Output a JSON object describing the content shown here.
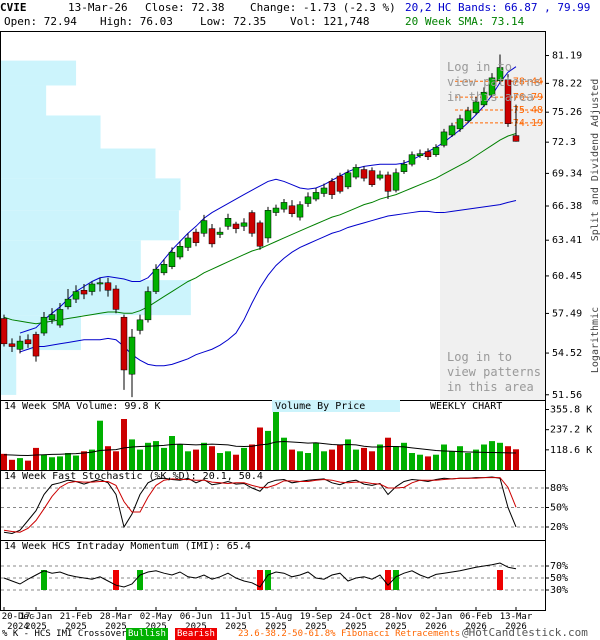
{
  "header": {
    "symbol": "CVIE",
    "date": "13-Mar-26",
    "close": "Close: 72.38",
    "change": "Change: -1.73 (-2.3 %)",
    "bands": "20,2 HC Bands: 66.87 , 79.99",
    "open": "Open: 72.94",
    "high": "High: 76.03",
    "low": "Low: 72.35",
    "volume": "Vol: 121,748",
    "sma": "20 Week SMA: 73.14"
  },
  "chart_data": [
    {
      "type": "candlestick",
      "log_scale": true,
      "up_color": "#00b000",
      "down_color": "#cc0000",
      "categories": [
        "20-Dec\n2024",
        null,
        null,
        null,
        "17-Jan\n2025",
        null,
        null,
        null,
        null,
        "21-Feb\n2025",
        null,
        null,
        null,
        null,
        "28-Mar\n2025",
        null,
        null,
        null,
        null,
        "02-May\n2025",
        null,
        null,
        null,
        null,
        "06-Jun\n2025",
        null,
        null,
        null,
        null,
        "11-Jul\n2025",
        null,
        null,
        null,
        null,
        "15-Aug\n2025",
        null,
        null,
        null,
        null,
        "19-Sep\n2025",
        null,
        null,
        null,
        null,
        "24-Oct\n2025",
        null,
        null,
        null,
        null,
        "28-Nov\n2025",
        null,
        null,
        null,
        null,
        "02-Jan\n2026",
        null,
        null,
        null,
        null,
        "06-Feb\n2026",
        null,
        null,
        null,
        null,
        "13-Mar\n2026"
      ],
      "open": [
        57.1,
        55.2,
        54.8,
        55.5,
        55.9,
        56.0,
        57.0,
        56.6,
        58.0,
        58.6,
        59.3,
        59.2,
        59.8,
        59.9,
        59.4,
        57.2,
        53.0,
        56.2,
        57.0,
        59.2,
        60.7,
        61.2,
        62.0,
        62.8,
        64.1,
        64.0,
        64.4,
        63.9,
        64.6,
        64.8,
        64.6,
        65.8,
        64.9,
        63.6,
        65.8,
        66.1,
        66.4,
        65.4,
        66.6,
        67.0,
        67.5,
        68.6,
        69.1,
        68.1,
        69.0,
        69.7,
        69.6,
        68.9,
        69.2,
        67.8,
        69.5,
        70.2,
        71.0,
        71.4,
        71.1,
        72.0,
        73.0,
        73.6,
        74.4,
        75.2,
        76.0,
        77.0,
        78.5,
        78.6,
        72.94
      ],
      "high": [
        57.4,
        55.6,
        55.8,
        55.9,
        56.1,
        57.6,
        57.9,
        58.3,
        59.4,
        59.7,
        59.8,
        60.0,
        60.3,
        60.3,
        59.7,
        57.4,
        56.3,
        57.4,
        59.6,
        61.4,
        61.8,
        62.8,
        63.3,
        64.0,
        64.4,
        65.6,
        64.8,
        64.5,
        65.7,
        65.0,
        65.3,
        66.0,
        65.1,
        66.3,
        66.5,
        67.0,
        66.9,
        66.8,
        67.6,
        68.0,
        68.4,
        68.9,
        69.4,
        69.7,
        70.2,
        70.0,
        69.9,
        69.6,
        69.5,
        69.8,
        70.6,
        71.4,
        71.6,
        71.7,
        72.1,
        73.6,
        74.2,
        75.0,
        75.8,
        76.8,
        77.8,
        79.3,
        81.3,
        79.2,
        76.03
      ],
      "low": [
        55.0,
        54.6,
        54.5,
        54.9,
        53.9,
        55.8,
        56.7,
        56.4,
        57.8,
        58.3,
        58.6,
        58.9,
        59.2,
        58.8,
        57.5,
        51.9,
        51.4,
        55.9,
        56.8,
        59.0,
        60.5,
        61.0,
        61.8,
        62.5,
        62.9,
        63.7,
        62.8,
        63.6,
        64.3,
        64.0,
        64.2,
        63.7,
        62.6,
        63.2,
        65.5,
        65.8,
        65.4,
        65.1,
        66.3,
        66.8,
        67.2,
        67.0,
        67.5,
        67.9,
        68.8,
        68.6,
        68.1,
        68.7,
        67.0,
        67.6,
        69.3,
        70.0,
        70.8,
        70.6,
        70.9,
        71.8,
        72.8,
        73.3,
        74.2,
        75.0,
        75.8,
        76.8,
        78.2,
        73.8,
        72.35
      ],
      "close": [
        55.2,
        55.0,
        55.4,
        55.2,
        54.3,
        57.2,
        57.4,
        57.8,
        58.6,
        59.2,
        59.0,
        59.8,
        59.9,
        59.3,
        57.8,
        53.3,
        55.7,
        57.0,
        59.2,
        61.0,
        61.4,
        62.4,
        62.9,
        63.6,
        63.2,
        65.1,
        63.1,
        64.1,
        65.3,
        64.4,
        64.9,
        64.0,
        62.9,
        66.0,
        66.2,
        66.7,
        65.7,
        66.5,
        67.2,
        67.6,
        68.0,
        67.4,
        67.7,
        69.4,
        69.9,
        68.9,
        68.3,
        69.2,
        67.7,
        69.4,
        70.2,
        71.1,
        71.2,
        70.9,
        71.8,
        73.3,
        73.9,
        74.6,
        75.4,
        76.3,
        77.3,
        78.8,
        79.9,
        74.11,
        72.38
      ],
      "series": [
        {
          "color": "#0000cc",
          "values": [
            null,
            null,
            56.0,
            56.2,
            56.4,
            57.0,
            57.5,
            58.0,
            58.6,
            59.2,
            59.6,
            60.0,
            60.3,
            60.4,
            60.3,
            60.2,
            60.0,
            60.0,
            60.3,
            61.0,
            61.8,
            62.6,
            63.3,
            64.0,
            64.6,
            65.3,
            65.8,
            66.2,
            66.6,
            67.0,
            67.4,
            67.8,
            68.2,
            68.6,
            68.8,
            68.6,
            68.3,
            68.0,
            67.9,
            68.0,
            68.3,
            68.7,
            69.1,
            69.5,
            69.8,
            70.0,
            70.1,
            70.2,
            70.2,
            70.2,
            70.3,
            70.6,
            71.0,
            71.4,
            71.8,
            72.3,
            72.9,
            73.5,
            74.2,
            75.0,
            75.9,
            77.0,
            78.3,
            79.4,
            79.99
          ]
        },
        {
          "color": "#0000cc",
          "values": [
            null,
            null,
            54.6,
            54.8,
            55.0,
            55.0,
            55.1,
            55.2,
            55.3,
            55.4,
            55.5,
            55.5,
            55.5,
            55.6,
            55.5,
            55.0,
            54.4,
            54.0,
            53.7,
            53.6,
            53.6,
            53.7,
            53.9,
            54.1,
            54.4,
            54.6,
            54.8,
            55.1,
            55.5,
            56.0,
            57.0,
            58.3,
            59.5,
            60.5,
            61.3,
            61.9,
            62.4,
            62.8,
            63.1,
            63.4,
            63.7,
            64.0,
            64.2,
            64.5,
            64.7,
            64.9,
            65.1,
            65.3,
            65.5,
            65.6,
            65.7,
            65.8,
            65.9,
            65.9,
            65.8,
            65.8,
            65.9,
            66.0,
            66.1,
            66.2,
            66.3,
            66.4,
            66.5,
            66.7,
            66.87
          ]
        },
        {
          "color": "#008000",
          "values": [
            57.2,
            57.0,
            56.9,
            56.8,
            56.7,
            56.8,
            56.9,
            57.0,
            57.1,
            57.2,
            57.3,
            57.4,
            57.5,
            57.6,
            57.6,
            57.5,
            57.5,
            57.7,
            58.0,
            58.4,
            58.8,
            59.2,
            59.6,
            60.0,
            60.3,
            60.7,
            61.0,
            61.3,
            61.6,
            61.9,
            62.2,
            62.5,
            62.7,
            63.0,
            63.3,
            63.6,
            63.9,
            64.2,
            64.5,
            64.8,
            65.1,
            65.4,
            65.6,
            65.9,
            66.2,
            66.5,
            66.7,
            67.0,
            67.2,
            67.4,
            67.7,
            68.0,
            68.3,
            68.6,
            68.9,
            69.3,
            69.7,
            70.1,
            70.5,
            71.0,
            71.5,
            72.0,
            72.5,
            72.9,
            73.14
          ]
        }
      ],
      "ylim": [
        51.2,
        83.9
      ],
      "yticks": [
        51.56,
        54.52,
        57.49,
        60.45,
        63.41,
        66.38,
        69.34,
        72.3,
        75.26,
        78.22,
        81.19
      ],
      "fibonacci": {
        "color": "#ff6600",
        "levels": [
          78.44,
          76.79,
          75.48,
          74.19
        ]
      },
      "volume_by_price": {
        "color": "#ccf4fc",
        "xlim": [
          0,
          1000
        ],
        "bins": [
          51.55,
          54.74,
          57.36,
          60.11,
          63.4,
          66.0,
          68.88,
          71.69,
          74.93,
          78.0,
          80.64
        ],
        "values": [
          28,
          147,
          349,
          257,
          327,
          330,
          284,
          183,
          83,
          138
        ]
      },
      "annotations": [
        "Log in to\nview patterns\nin this area",
        "Log in to\nview patterns\nin this area"
      ],
      "side_labels": [
        "Split and Dividend Adjusted",
        "Logarithmic"
      ]
    },
    {
      "type": "bar",
      "title": "14 Week SMA Volume: 99.8 K",
      "annotations": [
        "Volume By Price",
        "WEEKLY CHART"
      ],
      "values": [
        95,
        60,
        70,
        55,
        130,
        90,
        75,
        80,
        100,
        85,
        110,
        120,
        290,
        140,
        110,
        300,
        180,
        120,
        160,
        170,
        130,
        200,
        150,
        110,
        120,
        160,
        140,
        100,
        110,
        90,
        130,
        150,
        250,
        230,
        360,
        190,
        120,
        110,
        100,
        160,
        110,
        120,
        150,
        180,
        120,
        130,
        110,
        150,
        190,
        140,
        160,
        100,
        90,
        80,
        90,
        150,
        110,
        140,
        100,
        120,
        150,
        170,
        160,
        140,
        121.748
      ],
      "series": [
        {
          "color": "#000000",
          "values": [
            90,
            88,
            86,
            85,
            88,
            90,
            92,
            93,
            95,
            96,
            100,
            105,
            115,
            118,
            120,
            130,
            135,
            138,
            140,
            142,
            145,
            150,
            152,
            150,
            148,
            150,
            152,
            150,
            148,
            140,
            138,
            140,
            148,
            152,
            165,
            168,
            165,
            162,
            158,
            160,
            155,
            150,
            148,
            150,
            148,
            140,
            135,
            135,
            138,
            138,
            136,
            130,
            125,
            120,
            115,
            112,
            110,
            108,
            106,
            105,
            104,
            103,
            102,
            101,
            99.8
          ]
        }
      ],
      "ylim": [
        0,
        400
      ],
      "yticks": [
        {
          "value": 118.6,
          "label": "118.6 K"
        },
        {
          "value": 237.2,
          "label": "237.2 K"
        },
        {
          "value": 355.8,
          "label": "355.8 K"
        }
      ]
    },
    {
      "type": "line",
      "title": "14 Week Fast Stochastic (%K,%D): 20.1, 50.4",
      "series": [
        {
          "color": "#000000",
          "values": [
            12,
            10,
            15,
            30,
            45,
            70,
            85,
            88,
            92,
            90,
            86,
            90,
            93,
            88,
            70,
            20,
            40,
            70,
            88,
            94,
            95,
            93,
            92,
            95,
            88,
            93,
            85,
            87,
            90,
            86,
            87,
            80,
            75,
            88,
            92,
            93,
            88,
            90,
            92,
            93,
            94,
            88,
            85,
            90,
            92,
            86,
            84,
            87,
            70,
            82,
            90,
            93,
            92,
            90,
            93,
            95,
            94,
            95,
            95,
            96,
            96,
            97,
            95,
            50,
            20.1
          ]
        },
        {
          "color": "#cc0000",
          "values": [
            15,
            13,
            12,
            18,
            30,
            48,
            67,
            81,
            88,
            90,
            89,
            89,
            90,
            90,
            84,
            59,
            43,
            43,
            66,
            84,
            92,
            94,
            93,
            93,
            92,
            92,
            89,
            88,
            87,
            88,
            88,
            84,
            81,
            81,
            85,
            91,
            91,
            90,
            90,
            92,
            93,
            92,
            89,
            88,
            89,
            89,
            87,
            86,
            80,
            80,
            81,
            88,
            92,
            92,
            92,
            93,
            94,
            95,
            95,
            95,
            96,
            96,
            96,
            81,
            50.4
          ]
        }
      ],
      "ylim": [
        0,
        100
      ],
      "grid": true,
      "yticks": [
        {
          "value": 20,
          "label": "20%"
        },
        {
          "value": 50,
          "label": "50%"
        },
        {
          "value": 80,
          "label": "80%"
        }
      ]
    },
    {
      "type": "line",
      "title": "14 Week HCS Intraday Momentum (IMI): 65.4",
      "bullish_color": "#00b000",
      "bearish_color": "#ee0000",
      "series": [
        {
          "color": "#000000",
          "values": [
            50,
            45,
            40,
            48,
            55,
            62,
            58,
            60,
            55,
            52,
            50,
            48,
            52,
            45,
            38,
            35,
            40,
            55,
            60,
            62,
            58,
            55,
            60,
            52,
            50,
            55,
            48,
            52,
            58,
            50,
            45,
            42,
            35,
            55,
            60,
            58,
            52,
            55,
            60,
            50,
            48,
            55,
            58,
            45,
            50,
            52,
            48,
            55,
            38,
            52,
            58,
            62,
            55,
            50,
            56,
            58,
            60,
            62,
            65,
            68,
            70,
            72,
            75,
            68,
            65.4
          ]
        }
      ],
      "signals": [
        null,
        null,
        null,
        null,
        null,
        "Bullish",
        null,
        null,
        null,
        null,
        null,
        null,
        null,
        null,
        "Bearish",
        null,
        null,
        "Bullish",
        null,
        null,
        null,
        null,
        null,
        null,
        null,
        null,
        null,
        null,
        null,
        null,
        null,
        null,
        "Bearish",
        "Bullish",
        null,
        null,
        null,
        null,
        null,
        null,
        null,
        null,
        null,
        null,
        null,
        null,
        null,
        null,
        "Bearish",
        "Bullish",
        null,
        null,
        null,
        null,
        null,
        null,
        null,
        null,
        null,
        null,
        null,
        null,
        "Bearish",
        null,
        null
      ],
      "ylim": [
        0,
        100
      ],
      "grid": true,
      "yticks": [
        {
          "value": 30,
          "label": "30%"
        },
        {
          "value": 50,
          "label": "50%"
        },
        {
          "value": 70,
          "label": "70%"
        }
      ]
    }
  ],
  "footer": {
    "crossover": "% K - HCS IMI Crossover:",
    "bullish": "Bullish",
    "bearish": "Bearish",
    "fibonacci": "23.6-38.2-50-61.8% Fibonacci Retracements",
    "source": "@HotCandlestick.com"
  }
}
